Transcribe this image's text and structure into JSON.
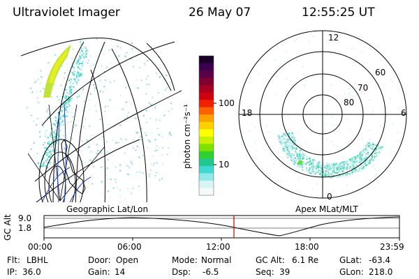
{
  "header": {
    "instrument": "Ultraviolet Imager",
    "date": "26 May 07",
    "time": "12:55:25 UT"
  },
  "colorbar": {
    "unit_label": "photon cm⁻²s⁻¹",
    "ticks": [
      "100",
      "10"
    ],
    "colors": [
      "#1a0028",
      "#3c0050",
      "#5a0048",
      "#800030",
      "#a80020",
      "#d00010",
      "#f02000",
      "#ff6000",
      "#ffa000",
      "#ffd000",
      "#ffff00",
      "#c8f000",
      "#80e000",
      "#30d030",
      "#20c890",
      "#40d8d0",
      "#90e8e8",
      "#d8f4f4",
      "#f4fafa"
    ]
  },
  "left_map": {
    "label": "Geographic Lat/Lon"
  },
  "right_map": {
    "label": "Apex  MLat/MLT",
    "mlt_labels": [
      "12",
      "18",
      "6",
      "0"
    ],
    "lat_labels": [
      "60",
      "70",
      "80"
    ]
  },
  "timeline": {
    "axis_label": "GC Alt",
    "y_ticks": [
      "9.0",
      "1.8"
    ],
    "x_ticks": [
      "00:00",
      "06:00",
      "12:00",
      "18:00",
      "23:59"
    ],
    "marker_color": "#d02020"
  },
  "info": {
    "row1": [
      {
        "label": "Flt:",
        "value": "LBHL"
      },
      {
        "label": "Door:",
        "value": "Open"
      },
      {
        "label": "Mode:",
        "value": "Normal"
      },
      {
        "label": "GC Alt:",
        "value": "6.1 Re"
      },
      {
        "label": "GLat:",
        "value": "-63.4"
      }
    ],
    "row2": [
      {
        "label": "IP:",
        "value": "36.0"
      },
      {
        "label": "Gain:",
        "value": "14"
      },
      {
        "label": "Dsp:",
        "value": "-6.5"
      },
      {
        "label": "Seq:",
        "value": "39"
      },
      {
        "label": "GLon:",
        "value": "218.0"
      }
    ]
  }
}
